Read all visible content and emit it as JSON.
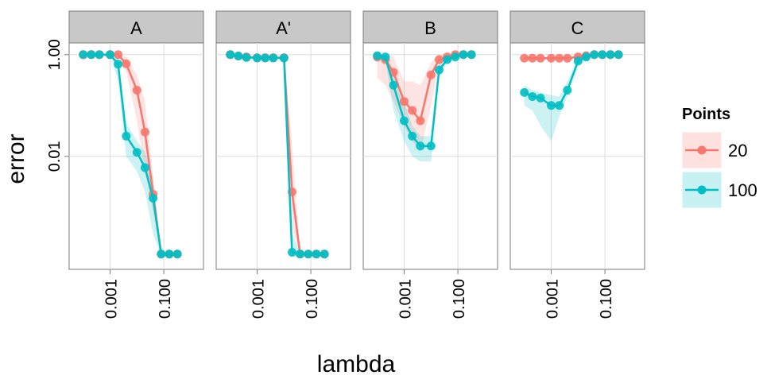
{
  "chart_data": {
    "type": "line",
    "facets": [
      "A",
      "A'",
      "B",
      "C"
    ],
    "xlabel": "lambda",
    "ylabel": "error",
    "x_scale": "log10",
    "y_scale": "log10",
    "xlim": [
      3e-05,
      3
    ],
    "ylim": [
      6e-05,
      1.7
    ],
    "x_ticks": [
      {
        "value": 0.001,
        "label": "0.001"
      },
      {
        "value": 0.1,
        "label": "0.100"
      }
    ],
    "y_ticks": [
      {
        "value": 0.01,
        "label": "0.01"
      },
      {
        "value": 1,
        "label": "1.00"
      }
    ],
    "grid": true,
    "legend": {
      "title": "Points",
      "position": "right",
      "entries": [
        {
          "label": "20",
          "color": "#F8766D"
        },
        {
          "label": "100",
          "color": "#00BFC4"
        }
      ]
    },
    "series": [
      {
        "name": "20",
        "color": "#F8766D",
        "panels": {
          "A": {
            "x": [
              0.0001,
              0.0002,
              0.0004,
              0.001,
              0.002,
              0.004,
              0.01,
              0.02,
              0.04,
              0.08,
              0.16,
              0.32
            ],
            "y": [
              1.0,
              1.0,
              1.0,
              1.0,
              1.0,
              0.66,
              0.2,
              0.03,
              0.0018,
              0.00012,
              0.00012,
              0.00012
            ],
            "lo": [
              0.75,
              0.95,
              0.95,
              0.95,
              0.95,
              0.45,
              0.05,
              0.005,
              0.0008,
              0.00011,
              0.00011,
              0.00011
            ],
            "hi": [
              1.0,
              1.0,
              1.0,
              1.0,
              1.0,
              0.9,
              0.4,
              0.12,
              0.004,
              0.00013,
              0.00013,
              0.00013
            ]
          },
          "A'": {
            "x": [
              0.0001,
              0.0002,
              0.0004,
              0.001,
              0.002,
              0.004,
              0.01,
              0.02,
              0.04,
              0.08,
              0.16,
              0.32
            ],
            "y": [
              1.0,
              0.94,
              0.9,
              0.87,
              0.87,
              0.87,
              0.87,
              0.002,
              0.00012,
              0.00012,
              0.00012,
              0.00012
            ],
            "lo": [
              0.98,
              0.88,
              0.85,
              0.84,
              0.84,
              0.84,
              0.84,
              0.0004,
              0.00011,
              0.00011,
              0.00011,
              0.00011
            ],
            "hi": [
              1.0,
              1.0,
              0.95,
              0.9,
              0.9,
              0.9,
              0.9,
              0.018,
              0.00013,
              0.00013,
              0.00013,
              0.00013
            ]
          },
          "B": {
            "x": [
              0.0001,
              0.0002,
              0.0004,
              0.001,
              0.002,
              0.004,
              0.01,
              0.02,
              0.04,
              0.08,
              0.16,
              0.32
            ],
            "y": [
              0.9,
              0.8,
              0.45,
              0.12,
              0.08,
              0.05,
              0.4,
              0.8,
              0.9,
              1.0,
              1.0,
              1.0
            ],
            "lo": [
              0.35,
              0.25,
              0.12,
              0.04,
              0.02,
              0.012,
              0.1,
              0.6,
              0.85,
              0.95,
              0.95,
              0.95
            ],
            "hi": [
              1.0,
              1.0,
              0.9,
              0.3,
              0.3,
              0.25,
              0.7,
              1.0,
              1.0,
              1.1,
              1.1,
              1.05
            ]
          },
          "C": {
            "x": [
              0.0001,
              0.0002,
              0.0004,
              0.001,
              0.002,
              0.004,
              0.01,
              0.02,
              0.04,
              0.08,
              0.16,
              0.32
            ],
            "y": [
              0.85,
              0.85,
              0.85,
              0.85,
              0.85,
              0.85,
              0.9,
              0.95,
              1.0,
              1.0,
              1.0,
              1.0
            ],
            "lo": [
              0.8,
              0.8,
              0.8,
              0.8,
              0.8,
              0.8,
              0.85,
              0.9,
              0.95,
              0.95,
              0.95,
              0.95
            ],
            "hi": [
              0.9,
              0.9,
              0.9,
              0.9,
              0.9,
              0.9,
              0.95,
              1.0,
              1.05,
              1.05,
              1.05,
              1.05
            ]
          }
        }
      },
      {
        "name": "100",
        "color": "#00BFC4",
        "panels": {
          "A": {
            "x": [
              0.0001,
              0.0002,
              0.0004,
              0.001,
              0.002,
              0.004,
              0.01,
              0.02,
              0.04,
              0.08,
              0.16,
              0.32
            ],
            "y": [
              1.0,
              1.0,
              1.0,
              1.0,
              0.65,
              0.025,
              0.012,
              0.006,
              0.0015,
              0.00012,
              0.00012,
              0.00012
            ],
            "lo": [
              1.0,
              1.0,
              1.0,
              1.0,
              0.3,
              0.01,
              0.005,
              0.002,
              0.0003,
              0.00011,
              0.00011,
              0.00011
            ],
            "hi": [
              1.0,
              1.0,
              1.0,
              1.0,
              0.9,
              0.045,
              0.02,
              0.012,
              0.004,
              0.00013,
              0.00013,
              0.00013
            ]
          },
          "A'": {
            "x": [
              0.0001,
              0.0002,
              0.0004,
              0.001,
              0.002,
              0.004,
              0.01,
              0.02,
              0.04,
              0.08,
              0.16,
              0.32
            ],
            "y": [
              1.0,
              0.94,
              0.88,
              0.86,
              0.86,
              0.86,
              0.86,
              0.00013,
              0.00012,
              0.00012,
              0.00012,
              0.00012
            ],
            "lo": [
              0.98,
              0.9,
              0.85,
              0.84,
              0.84,
              0.84,
              0.84,
              0.00011,
              0.00011,
              0.00011,
              0.00011,
              0.00011
            ],
            "hi": [
              1.0,
              0.97,
              0.9,
              0.88,
              0.88,
              0.88,
              0.88,
              0.0003,
              0.00013,
              0.00013,
              0.00013,
              0.00013
            ]
          },
          "B": {
            "x": [
              0.0001,
              0.0002,
              0.0004,
              0.001,
              0.002,
              0.004,
              0.01,
              0.02,
              0.04,
              0.08,
              0.16,
              0.32
            ],
            "y": [
              0.95,
              0.9,
              0.25,
              0.05,
              0.025,
              0.016,
              0.016,
              0.5,
              0.8,
              0.9,
              1.0,
              1.0
            ],
            "lo": [
              0.9,
              0.8,
              0.08,
              0.02,
              0.01,
              0.008,
              0.008,
              0.35,
              0.7,
              0.85,
              0.95,
              0.95
            ],
            "hi": [
              1.0,
              1.0,
              0.5,
              0.12,
              0.04,
              0.025,
              0.025,
              0.7,
              0.9,
              0.95,
              1.05,
              1.05
            ]
          },
          "C": {
            "x": [
              0.0001,
              0.0002,
              0.0004,
              0.001,
              0.002,
              0.004,
              0.01,
              0.02,
              0.04,
              0.08,
              0.16,
              0.32
            ],
            "y": [
              0.18,
              0.15,
              0.14,
              0.1,
              0.1,
              0.2,
              0.75,
              0.9,
              1.0,
              1.0,
              1.0,
              1.0
            ],
            "lo": [
              0.1,
              0.08,
              0.04,
              0.02,
              0.06,
              0.15,
              0.6,
              0.85,
              0.95,
              0.95,
              0.95,
              0.95
            ],
            "hi": [
              0.25,
              0.2,
              0.18,
              0.16,
              0.15,
              0.3,
              0.85,
              0.95,
              1.05,
              1.05,
              1.05,
              1.05
            ]
          }
        }
      }
    ]
  }
}
